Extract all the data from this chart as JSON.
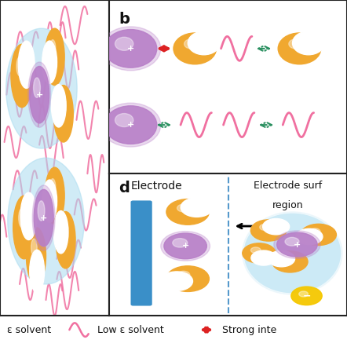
{
  "bg_color": "#ffffff",
  "border_color": "#222222",
  "label_b": "b",
  "label_d": "d",
  "ion_purple_color": "#b87fc8",
  "ion_orange_color": "#f0a830",
  "electrode_blue": "#3a8fc8",
  "anion_yellow": "#f5c800",
  "pink_wave_color": "#f070a0",
  "dashed_arrow_color": "#2a9060",
  "red_arrow_color": "#dd2222",
  "blue_dashed_line": "#5599cc",
  "text_color": "#111111",
  "plus_sign": "+",
  "minus_sign": "−",
  "electrode_label": "Electrode",
  "electrode_surface_label": "Electrode surf",
  "region_label": "region",
  "shell_blue": "#aadcf0"
}
